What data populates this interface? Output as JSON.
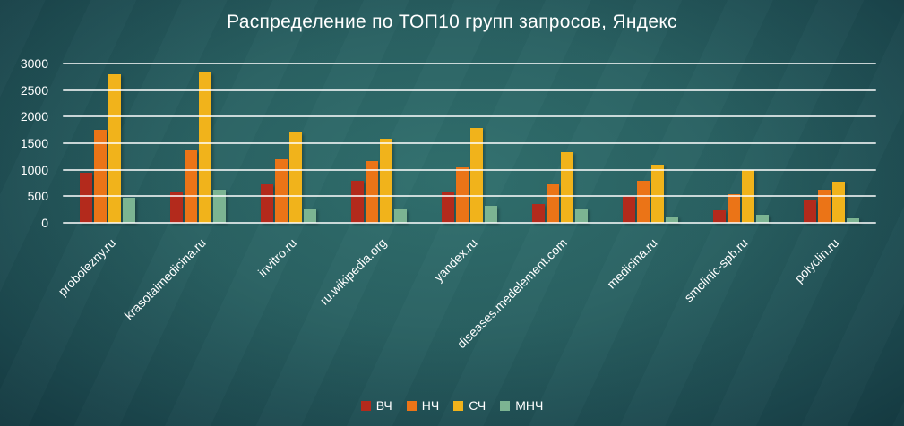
{
  "chart_data": {
    "type": "bar",
    "title": "Распределение по ТОП10 групп запросов, Яндекс",
    "categories": [
      "probolezny.ru",
      "krasotaimedicina.ru",
      "invitro.ru",
      "ru.wikipedia.org",
      "yandex.ru",
      "diseases.medelement.com",
      "medicina.ru",
      "smclinic-spb.ru",
      "polyclin.ru"
    ],
    "series": [
      {
        "name": "ВЧ",
        "color": "#b32a1c",
        "values": [
          950,
          570,
          720,
          790,
          575,
          350,
          500,
          240,
          430
        ]
      },
      {
        "name": "НЧ",
        "color": "#eb7417",
        "values": [
          1750,
          1370,
          1190,
          1170,
          1050,
          730,
          790,
          540,
          620
        ]
      },
      {
        "name": "СЧ",
        "color": "#f1b31b",
        "values": [
          2800,
          2840,
          1700,
          1590,
          1790,
          1330,
          1100,
          1000,
          770
        ]
      },
      {
        "name": "МНЧ",
        "color": "#7cb492",
        "values": [
          470,
          620,
          270,
          260,
          320,
          270,
          120,
          160,
          85
        ]
      }
    ],
    "ylim": [
      0,
      3000
    ],
    "yticks": [
      0,
      500,
      1000,
      1500,
      2000,
      2500,
      3000
    ],
    "xlabel": "",
    "ylabel": "",
    "grid": true,
    "legend_position": "bottom"
  },
  "colors": {
    "background_center": "#2e6a68",
    "background_edge": "#15383f",
    "text": "#ffffff",
    "gridline": "rgba(255,255,255,0.75)"
  }
}
